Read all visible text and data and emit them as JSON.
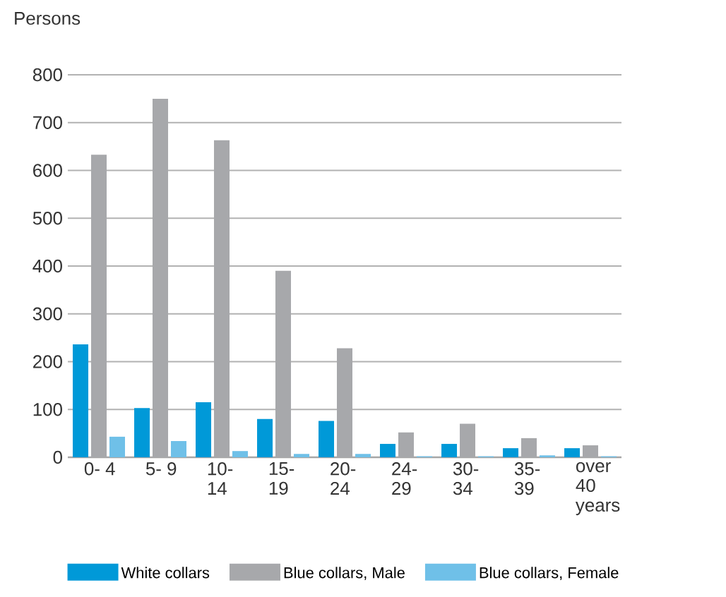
{
  "chart_data": {
    "type": "bar",
    "ylabel": "Persons",
    "categories": [
      "0- 4",
      "5- 9",
      "10- 14",
      "15- 19",
      "20- 24",
      "24- 29",
      "30- 34",
      "35- 39",
      "over 40 years"
    ],
    "series": [
      {
        "name": "White collars",
        "color": "#0099d8",
        "values": [
          236,
          103,
          115,
          80,
          76,
          28,
          28,
          19,
          19
        ]
      },
      {
        "name": "Blue collars, Male",
        "color": "#a7a8ab",
        "values": [
          633,
          750,
          663,
          390,
          228,
          52,
          70,
          40,
          25
        ]
      },
      {
        "name": "Blue collars, Female",
        "color": "#6fc0e8",
        "values": [
          43,
          34,
          13,
          7,
          7,
          2,
          2,
          4,
          2
        ]
      }
    ],
    "ylim": [
      0,
      800
    ],
    "yticks": [
      0,
      100,
      200,
      300,
      400,
      500,
      600,
      700,
      800
    ],
    "grid": "y",
    "legend": "bottom"
  }
}
